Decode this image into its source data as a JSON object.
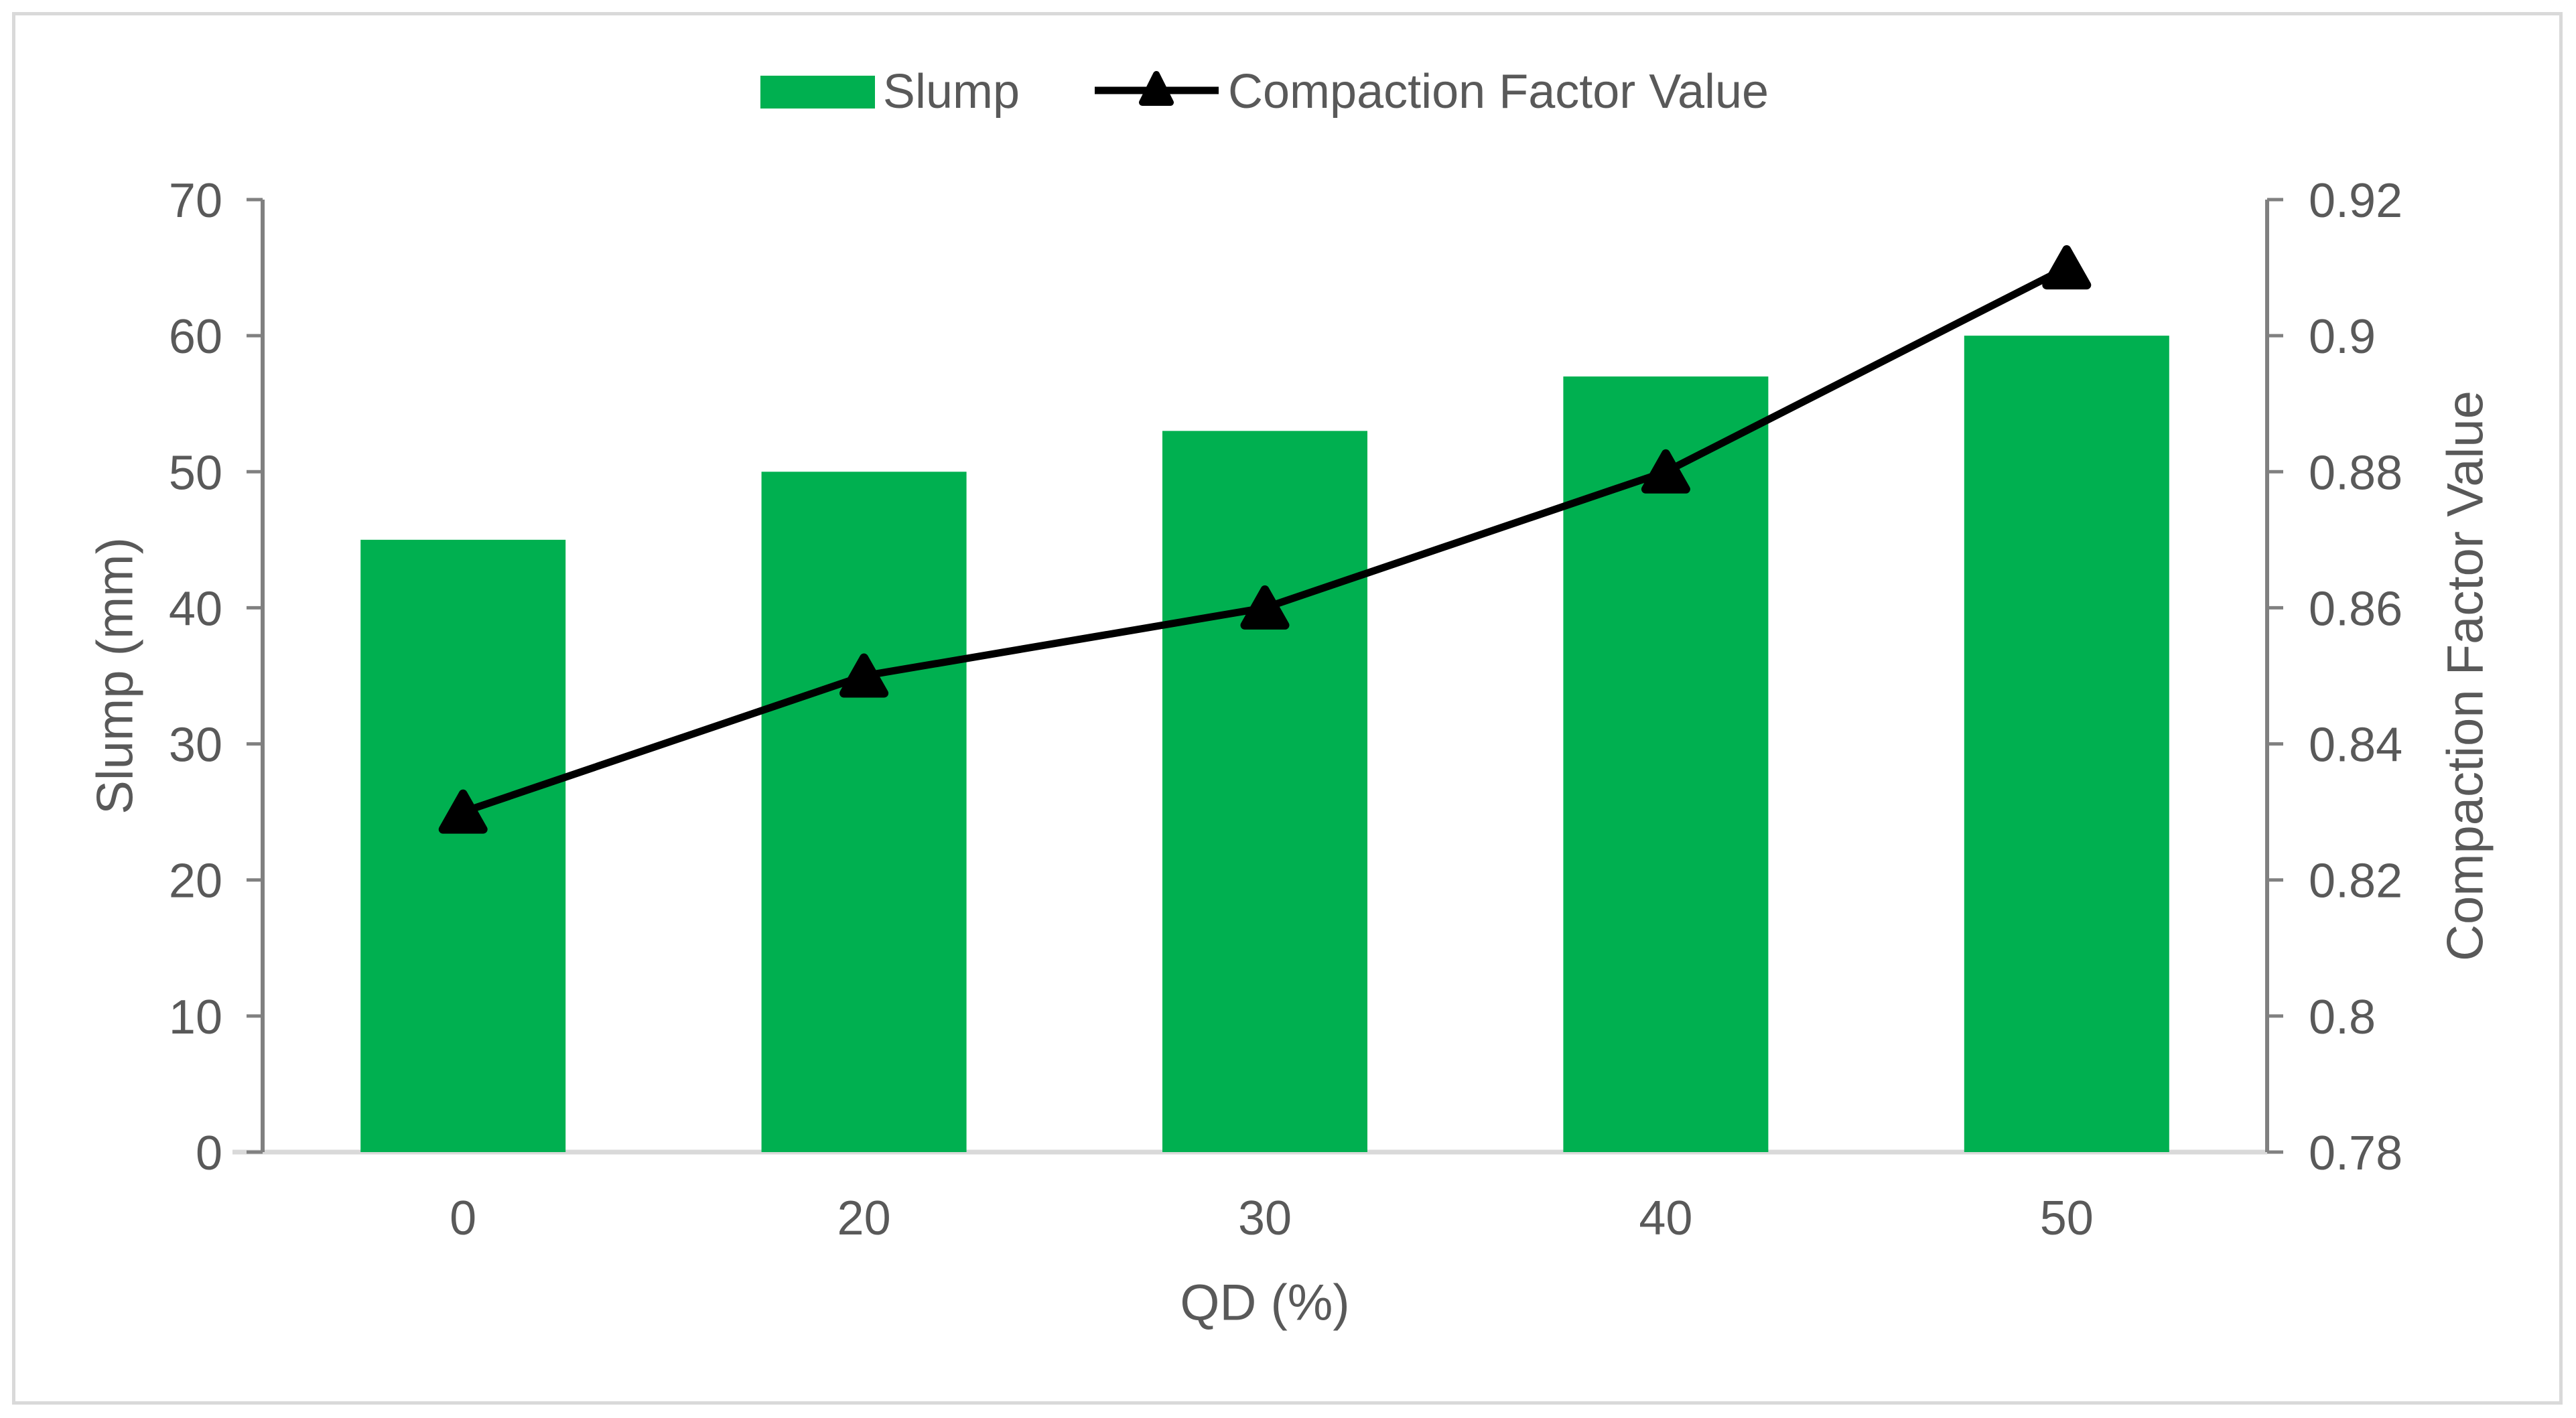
{
  "chart_data": {
    "type": "bar",
    "subtype": "combo-bar-line",
    "categories": [
      "0",
      "20",
      "30",
      "40",
      "50"
    ],
    "series": [
      {
        "name": "Slump",
        "type": "bar",
        "axis": "left",
        "color": "#00B050",
        "values": [
          45,
          50,
          53,
          57,
          60
        ]
      },
      {
        "name": "Compaction Factor Value",
        "type": "line",
        "axis": "right",
        "color": "#000000",
        "marker": "triangle",
        "values": [
          0.83,
          0.85,
          0.86,
          0.88,
          0.91
        ]
      }
    ],
    "title": "",
    "xlabel": "QD (%)",
    "ylabel_left": "Slump (mm)",
    "ylabel_right": "Compaction Factor Value",
    "ylim_left": [
      0,
      70
    ],
    "left_tick_labels": [
      "0",
      "10",
      "20",
      "30",
      "40",
      "50",
      "60",
      "70"
    ],
    "ylim_right": [
      0.78,
      0.92
    ],
    "right_tick_labels": [
      "0.78",
      "0.8",
      "0.82",
      "0.84",
      "0.86",
      "0.88",
      "0.9",
      "0.92"
    ],
    "grid": "off",
    "legend_position": "top-center"
  },
  "colors": {
    "bar_green": "#00B050",
    "line_black": "#000000",
    "axis_line_gray": "#808080",
    "baseline_gray": "#D9D9D9",
    "text_gray": "#595959",
    "border_gray": "#D9D9D9",
    "background": "#FFFFFF"
  }
}
